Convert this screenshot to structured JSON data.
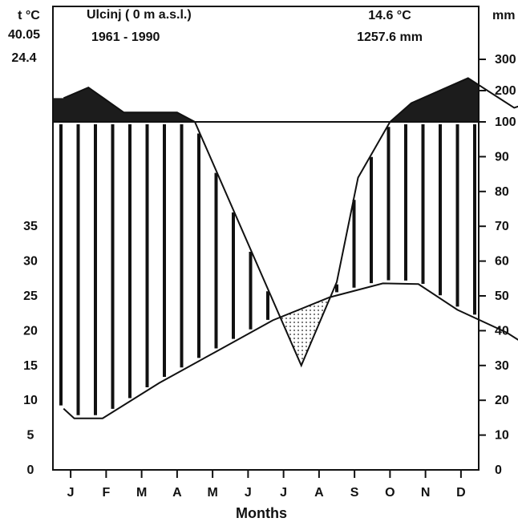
{
  "chart_data": {
    "type": "climate-diagram",
    "station": "Ulcinj ( 0 m a.s.l.)",
    "period": "1961 - 1990",
    "mean_temperature": "14.6 °C",
    "annual_precipitation": "1257.6 mm",
    "extreme_max": "40.05",
    "mean_daily_max_warmest": "24.4",
    "left_axis_label": "t °C",
    "right_axis_label": "mm",
    "xlabel": "Months",
    "months": [
      "J",
      "F",
      "M",
      "A",
      "M",
      "J",
      "J",
      "A",
      "S",
      "O",
      "N",
      "D"
    ],
    "temperature_ticks": [
      "0",
      "5",
      "10",
      "15",
      "20",
      "25",
      "30",
      "35"
    ],
    "precip_ticks_linear": [
      "0",
      "10",
      "20",
      "30",
      "40",
      "50",
      "60",
      "70",
      "80",
      "90",
      "100"
    ],
    "precip_ticks_compressed": [
      "200",
      "300"
    ],
    "temperature_c": [
      [
        0.3,
        8.8
      ],
      [
        0.6,
        7.4
      ],
      [
        1.4,
        7.4
      ],
      [
        3.0,
        12.5
      ],
      [
        4.6,
        17.0
      ],
      [
        6.2,
        21.5
      ],
      [
        7.8,
        24.8
      ],
      [
        9.3,
        26.8
      ],
      [
        10.3,
        26.7
      ],
      [
        11.4,
        23.0
      ],
      [
        12.8,
        19.7
      ],
      [
        14.4,
        14.5
      ],
      [
        16.0,
        9.7
      ],
      [
        16.7,
        8.4
      ]
    ],
    "precipitation_mm": [
      [
        0.3,
        176
      ],
      [
        1.0,
        210
      ],
      [
        2.0,
        130
      ],
      [
        2.5,
        130
      ],
      [
        3.5,
        130
      ],
      [
        4.0,
        100
      ],
      [
        7.0,
        30
      ],
      [
        8.0,
        54
      ],
      [
        8.6,
        84
      ],
      [
        9.5,
        100
      ],
      [
        10.1,
        160
      ],
      [
        11.7,
        240
      ],
      [
        13.0,
        145
      ],
      [
        13.5,
        165
      ]
    ],
    "legend": "none",
    "grid": false
  }
}
